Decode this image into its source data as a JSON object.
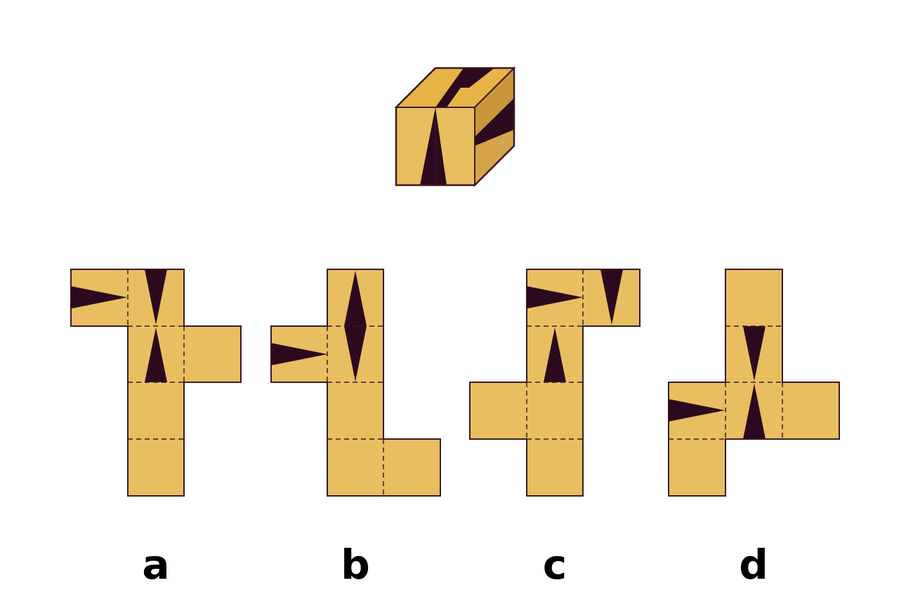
{
  "colors": {
    "face": "#E9BE60",
    "top_light": "#E7B445",
    "side": "#C8963A",
    "side_lower": "#D6A448",
    "dark": "#2C0A1E",
    "outline": "#3A1A24",
    "fold_line": "#3A1A24"
  },
  "options": [
    {
      "id": "a",
      "label": "a"
    },
    {
      "id": "b",
      "label": "b"
    },
    {
      "id": "c",
      "label": "c"
    },
    {
      "id": "d",
      "label": "d"
    }
  ]
}
